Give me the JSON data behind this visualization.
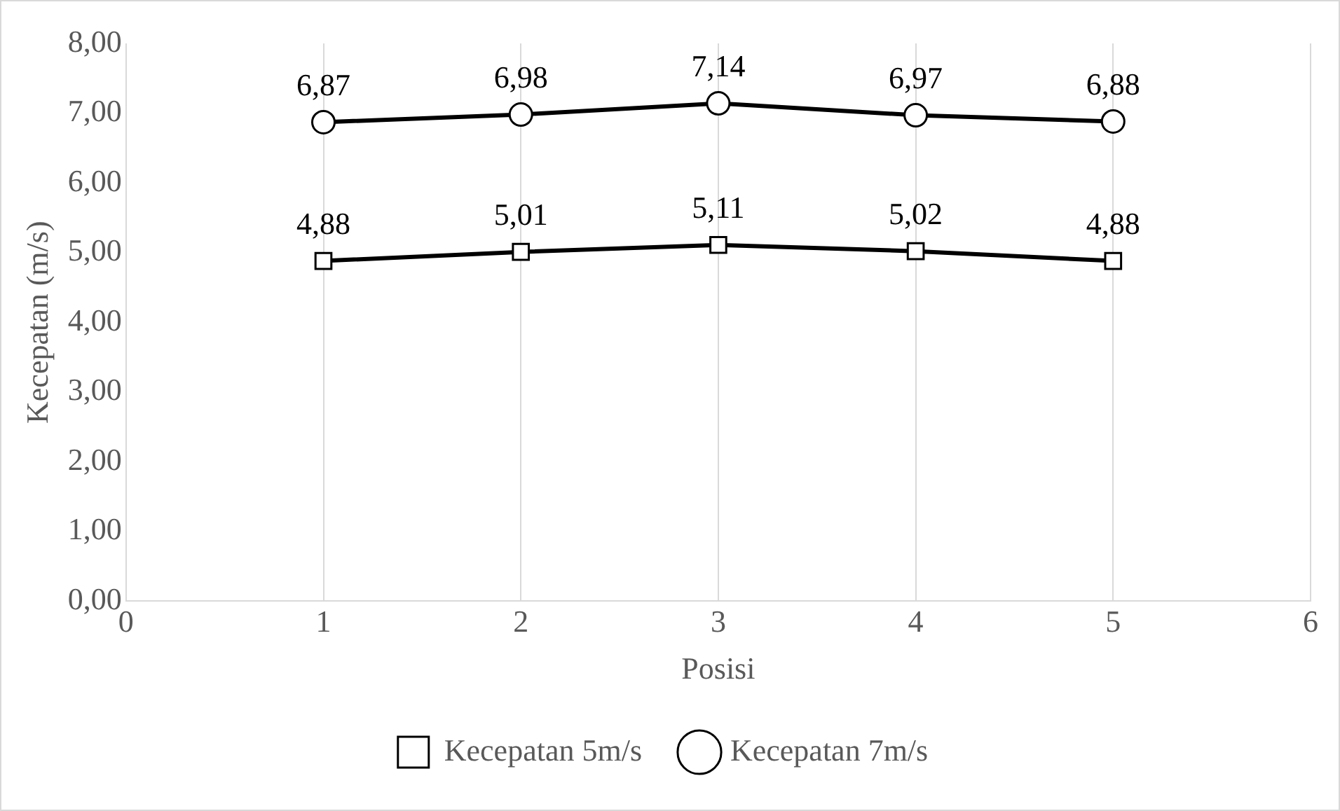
{
  "chart_data": {
    "type": "line",
    "xlabel": "Posisi",
    "ylabel": "Kecepatan (m/s)",
    "x": [
      1,
      2,
      3,
      4,
      5
    ],
    "xlim": [
      0,
      6
    ],
    "xticks": [
      0,
      1,
      2,
      3,
      4,
      5,
      6
    ],
    "ylim": [
      0,
      8
    ],
    "yticks": [
      {
        "value": 0,
        "label": "0,00"
      },
      {
        "value": 1,
        "label": "1,00"
      },
      {
        "value": 2,
        "label": "2,00"
      },
      {
        "value": 3,
        "label": "3,00"
      },
      {
        "value": 4,
        "label": "4,00"
      },
      {
        "value": 5,
        "label": "5,00"
      },
      {
        "value": 6,
        "label": "6,00"
      },
      {
        "value": 7,
        "label": "7,00"
      },
      {
        "value": 8,
        "label": "8,00"
      }
    ],
    "grid": "x",
    "legend": "bottom",
    "line_style": "solid",
    "series": [
      {
        "name": "Kecepatan 5m/s",
        "color": "#000000",
        "marker": "square",
        "values": [
          4.88,
          5.01,
          5.11,
          5.02,
          4.88
        ],
        "value_labels": [
          "4,88",
          "5,01",
          "5,11",
          "5,02",
          "4,88"
        ]
      },
      {
        "name": "Kecepatan 7m/s",
        "color": "#000000",
        "marker": "circle",
        "values": [
          6.87,
          6.98,
          7.14,
          6.97,
          6.88
        ],
        "value_labels": [
          "6,87",
          "6,98",
          "7,14",
          "6,97",
          "6,88"
        ]
      }
    ]
  }
}
